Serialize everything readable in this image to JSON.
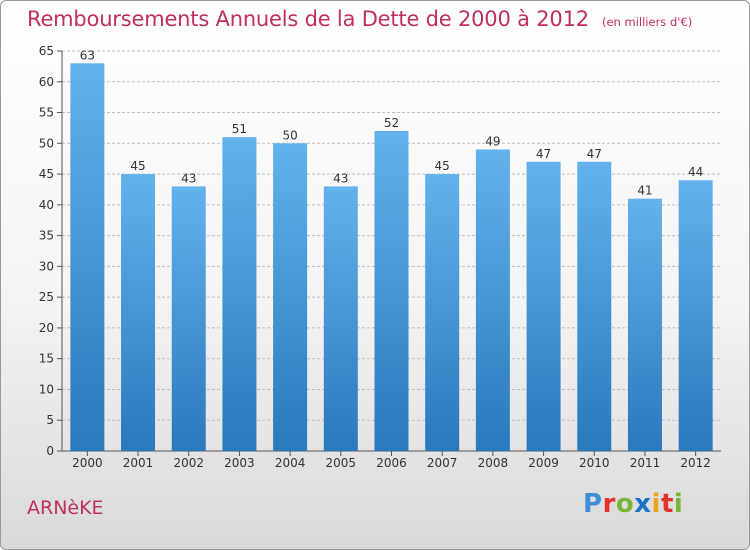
{
  "header": {
    "title": "Remboursements Annuels de la Dette de 2000 à 2012",
    "unit": "(en milliers d'€)"
  },
  "footer": {
    "commune": "ARNèKE",
    "logo_letters": [
      "P",
      "r",
      "o",
      "x",
      "i",
      "t",
      "i"
    ],
    "logo_colors": [
      "#3f8fd8",
      "#e2322b",
      "#79b43a",
      "#1a73c9",
      "#f0a21b",
      "#e2322b",
      "#79b43a"
    ]
  },
  "colors": {
    "bar_top": "#63b2ec",
    "bar_bottom": "#2a78bd",
    "grid": "#bdbdbd",
    "axis_text": "#333333"
  },
  "chart_data": {
    "type": "bar",
    "title": "Remboursements Annuels de la Dette de 2000 à 2012",
    "xlabel": "",
    "ylabel": "",
    "categories": [
      "2000",
      "2001",
      "2002",
      "2003",
      "2004",
      "2005",
      "2006",
      "2007",
      "2008",
      "2009",
      "2010",
      "2011",
      "2012"
    ],
    "values": [
      63,
      45,
      43,
      51,
      50,
      43,
      52,
      45,
      49,
      47,
      47,
      41,
      44
    ],
    "ylim": [
      0,
      65
    ],
    "yticks": [
      0,
      5,
      10,
      15,
      20,
      25,
      30,
      35,
      40,
      45,
      50,
      55,
      60,
      65
    ],
    "grid": true,
    "data_labels": true
  }
}
